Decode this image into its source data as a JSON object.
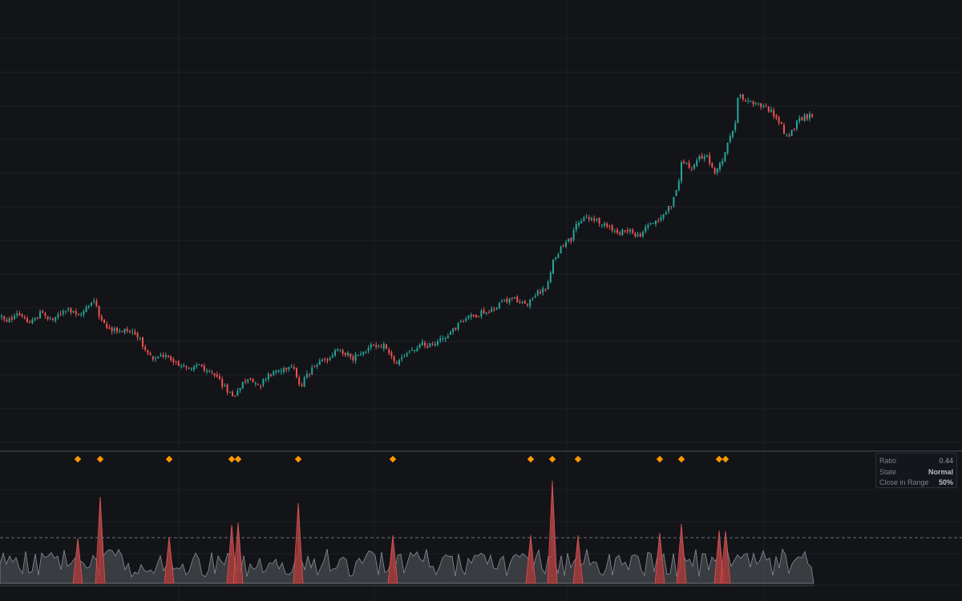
{
  "colors": {
    "background": "#131418",
    "grid": "#1f2127",
    "up": "#26a69a",
    "down": "#ef5350",
    "marker": "#ff9800",
    "baseline": "#3a3d45",
    "volume_fill": "#5a5c63",
    "volume_spike": "#b33a3a",
    "threshold_line": "#6b6f78"
  },
  "info_panel": {
    "rows": [
      {
        "label": "Ratio",
        "value": "0.44"
      },
      {
        "label": "State",
        "value": "Normal"
      },
      {
        "label": "Close in Range",
        "value": "50%"
      }
    ]
  },
  "chart_data": [
    {
      "type": "candlestick",
      "title": "",
      "grid": true,
      "bars": [],
      "note_series": "price path (unitless, no axis labels printed)",
      "path_keypoints": [
        [
          0,
          395
        ],
        [
          10,
          400
        ],
        [
          20,
          392
        ],
        [
          30,
          398
        ],
        [
          40,
          402
        ],
        [
          50,
          390
        ],
        [
          60,
          398
        ],
        [
          70,
          394
        ],
        [
          80,
          386
        ],
        [
          90,
          388
        ],
        [
          100,
          392
        ],
        [
          110,
          382
        ],
        [
          118,
          373
        ],
        [
          124,
          402
        ],
        [
          135,
          410
        ],
        [
          150,
          413
        ],
        [
          165,
          415
        ],
        [
          180,
          433
        ],
        [
          190,
          447
        ],
        [
          200,
          440
        ],
        [
          215,
          453
        ],
        [
          230,
          459
        ],
        [
          245,
          455
        ],
        [
          260,
          462
        ],
        [
          275,
          478
        ],
        [
          285,
          490
        ],
        [
          292,
          497
        ],
        [
          300,
          478
        ],
        [
          310,
          473
        ],
        [
          320,
          483
        ],
        [
          330,
          474
        ],
        [
          340,
          463
        ],
        [
          355,
          462
        ],
        [
          365,
          460
        ],
        [
          373,
          482
        ],
        [
          385,
          465
        ],
        [
          395,
          455
        ],
        [
          405,
          450
        ],
        [
          415,
          440
        ],
        [
          425,
          438
        ],
        [
          440,
          447
        ],
        [
          455,
          440
        ],
        [
          465,
          429
        ],
        [
          480,
          432
        ],
        [
          492,
          454
        ],
        [
          500,
          445
        ],
        [
          512,
          437
        ],
        [
          525,
          429
        ],
        [
          540,
          432
        ],
        [
          555,
          420
        ],
        [
          568,
          408
        ],
        [
          580,
          397
        ],
        [
          595,
          392
        ],
        [
          610,
          388
        ],
        [
          625,
          378
        ],
        [
          640,
          372
        ],
        [
          655,
          380
        ],
        [
          668,
          367
        ],
        [
          680,
          360
        ],
        [
          690,
          322
        ],
        [
          700,
          308
        ],
        [
          712,
          298
        ],
        [
          720,
          275
        ],
        [
          732,
          272
        ],
        [
          745,
          276
        ],
        [
          758,
          285
        ],
        [
          770,
          290
        ],
        [
          785,
          288
        ],
        [
          795,
          296
        ],
        [
          805,
          282
        ],
        [
          815,
          278
        ],
        [
          825,
          270
        ],
        [
          835,
          258
        ],
        [
          843,
          237
        ],
        [
          850,
          200
        ],
        [
          860,
          210
        ],
        [
          870,
          198
        ],
        [
          880,
          195
        ],
        [
          890,
          215
        ],
        [
          900,
          203
        ],
        [
          908,
          175
        ],
        [
          915,
          160
        ],
        [
          920,
          120
        ],
        [
          930,
          125
        ],
        [
          940,
          130
        ],
        [
          950,
          133
        ],
        [
          958,
          136
        ],
        [
          965,
          145
        ],
        [
          972,
          153
        ],
        [
          980,
          170
        ],
        [
          988,
          163
        ],
        [
          995,
          150
        ],
        [
          1005,
          146
        ],
        [
          1015,
          145
        ]
      ],
      "markers": [
        97,
        125,
        211,
        289,
        297,
        372,
        490,
        662,
        689,
        721,
        823,
        850,
        897,
        905
      ]
    },
    {
      "type": "area",
      "title": "",
      "threshold_fraction": 0.44,
      "spikes": [
        [
          125,
          620
        ],
        [
          372,
          628
        ],
        [
          689,
          600
        ],
        [
          97,
          672
        ],
        [
          211,
          670
        ],
        [
          289,
          655
        ],
        [
          297,
          652
        ],
        [
          490,
          668
        ],
        [
          662,
          668
        ],
        [
          721,
          668
        ],
        [
          823,
          665
        ],
        [
          850,
          654
        ],
        [
          897,
          662
        ],
        [
          905,
          663
        ]
      ]
    }
  ]
}
